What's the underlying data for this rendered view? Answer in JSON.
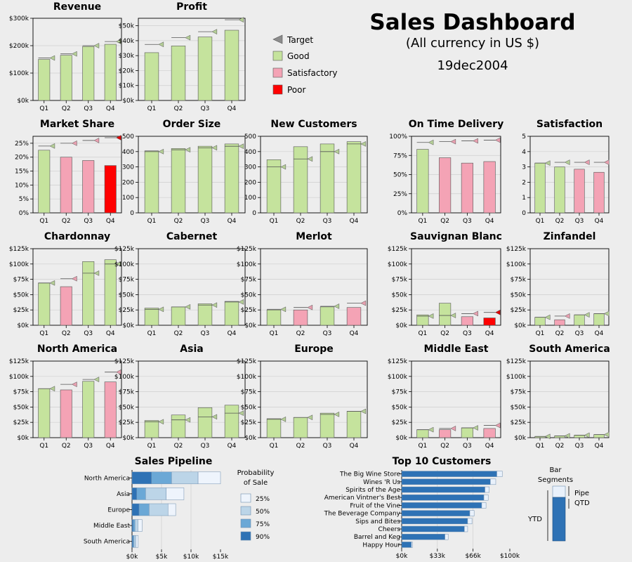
{
  "header": {
    "title": "Sales Dashboard",
    "subtitle": "(All currency in US $)",
    "date": "19dec2004"
  },
  "legend": {
    "items": [
      {
        "label": "Target",
        "color": "#8c8c8c",
        "icon": "triangle-icon"
      },
      {
        "label": "Good",
        "color": "#c5e39d",
        "icon": "square-icon"
      },
      {
        "label": "Satisfactory",
        "color": "#f4a3b5",
        "icon": "square-icon"
      },
      {
        "label": "Poor",
        "color": "#ff0000",
        "icon": "square-icon"
      }
    ]
  },
  "colors": {
    "good": "#c5e39d",
    "satisfactory": "#f4a3b5",
    "poor": "#ff0000",
    "target": "#8c8c8c",
    "pipe": "#e9f1fb",
    "qtd": "#2e72b5"
  },
  "chart_data": [
    {
      "type": "bar",
      "title": "Revenue",
      "categories": [
        "Q1",
        "Q2",
        "Q3",
        "Q4"
      ],
      "values": [
        150000,
        165000,
        197000,
        205000
      ],
      "targets": [
        155000,
        170000,
        200000,
        215000
      ],
      "status": [
        "good",
        "good",
        "good",
        "good"
      ],
      "ylim": [
        0,
        300000
      ],
      "yticks": [
        0,
        100000,
        200000,
        300000
      ],
      "ytick_labels": [
        "$0k",
        "$100k",
        "$200k",
        "$300k"
      ]
    },
    {
      "type": "bar",
      "title": "Profit",
      "categories": [
        "Q1",
        "Q2",
        "Q3",
        "Q4"
      ],
      "values": [
        32000,
        36500,
        42500,
        47000
      ],
      "targets": [
        37500,
        42000,
        46000,
        54000
      ],
      "status": [
        "good",
        "good",
        "good",
        "good"
      ],
      "ylim": [
        0,
        55000
      ],
      "yticks": [
        0,
        10000,
        20000,
        30000,
        40000,
        50000
      ],
      "ytick_labels": [
        "$0k",
        "$10k",
        "$20k",
        "$30k",
        "$40k",
        "$50k"
      ]
    },
    {
      "type": "bar",
      "title": "Market Share",
      "categories": [
        "Q1",
        "Q2",
        "Q3",
        "Q4"
      ],
      "values": [
        22.5,
        20,
        18.8,
        17
      ],
      "targets": [
        24,
        25,
        26,
        27
      ],
      "status": [
        "good",
        "satisfactory",
        "satisfactory",
        "poor"
      ],
      "ylim": [
        0,
        27.5
      ],
      "yticks": [
        0,
        5,
        10,
        15,
        20,
        25
      ],
      "ytick_labels": [
        "0%",
        "5%",
        "10%",
        "15%",
        "20%",
        "25%"
      ]
    },
    {
      "type": "bar",
      "title": "Order Size",
      "categories": [
        "Q1",
        "Q2",
        "Q3",
        "Q4"
      ],
      "values": [
        405,
        420,
        435,
        450
      ],
      "targets": [
        400,
        412,
        425,
        435
      ],
      "status": [
        "good",
        "good",
        "good",
        "good"
      ],
      "ylim": [
        0,
        500
      ],
      "yticks": [
        0,
        100,
        200,
        300,
        400,
        500
      ],
      "ytick_labels": [
        "0",
        "100",
        "200",
        "300",
        "400",
        "500"
      ]
    },
    {
      "type": "bar",
      "title": "New Customers",
      "categories": [
        "Q1",
        "Q2",
        "Q3",
        "Q4"
      ],
      "values": [
        347,
        432,
        450,
        465
      ],
      "targets": [
        300,
        352,
        400,
        450
      ],
      "status": [
        "good",
        "good",
        "good",
        "good"
      ],
      "ylim": [
        0,
        500
      ],
      "yticks": [
        0,
        100,
        200,
        300,
        400,
        500
      ],
      "ytick_labels": [
        "0",
        "100",
        "200",
        "300",
        "400",
        "500"
      ]
    },
    {
      "type": "bar",
      "title": "On Time Delivery",
      "categories": [
        "Q1",
        "Q2",
        "Q3",
        "Q4"
      ],
      "values": [
        83,
        72,
        65,
        67
      ],
      "targets": [
        92,
        93,
        94,
        95
      ],
      "status": [
        "good",
        "satisfactory",
        "satisfactory",
        "satisfactory"
      ],
      "ylim": [
        0,
        100
      ],
      "yticks": [
        0,
        25,
        50,
        75,
        100
      ],
      "ytick_labels": [
        "0%",
        "25%",
        "50%",
        "75%",
        "100%"
      ]
    },
    {
      "type": "bar",
      "title": "Satisfaction",
      "categories": [
        "Q1",
        "Q2",
        "Q3",
        "Q4"
      ],
      "values": [
        3.25,
        3,
        2.85,
        2.65
      ],
      "targets": [
        3.25,
        3.3,
        3.3,
        3.3
      ],
      "status": [
        "good",
        "good",
        "satisfactory",
        "satisfactory"
      ],
      "ylim": [
        0,
        5
      ],
      "yticks": [
        0,
        1,
        2,
        3,
        4,
        5
      ],
      "ytick_labels": [
        "0",
        "1",
        "2",
        "3",
        "4",
        "5"
      ]
    },
    {
      "type": "bar",
      "title": "Chardonnay",
      "categories": [
        "Q1",
        "Q2",
        "Q3",
        "Q4"
      ],
      "values": [
        69000,
        63000,
        104000,
        107000
      ],
      "targets": [
        69000,
        76000,
        85000,
        100000
      ],
      "status": [
        "good",
        "satisfactory",
        "good",
        "good"
      ],
      "ylim": [
        0,
        125000
      ],
      "yticks": [
        0,
        25000,
        50000,
        75000,
        100000,
        125000
      ],
      "ytick_labels": [
        "$0k",
        "$25k",
        "$50k",
        "$75k",
        "$100k",
        "$125k"
      ]
    },
    {
      "type": "bar",
      "title": "Cabernet",
      "categories": [
        "Q1",
        "Q2",
        "Q3",
        "Q4"
      ],
      "values": [
        28000,
        30000,
        35000,
        39000
      ],
      "targets": [
        26000,
        30000,
        33000,
        38000
      ],
      "status": [
        "good",
        "good",
        "good",
        "good"
      ],
      "ylim": [
        0,
        125000
      ],
      "yticks": [
        0,
        25000,
        50000,
        75000,
        100000,
        125000
      ],
      "ytick_labels": [
        "$0k",
        "$25k",
        "$50k",
        "$75k",
        "$100k",
        "$125k"
      ]
    },
    {
      "type": "bar",
      "title": "Merlot",
      "categories": [
        "Q1",
        "Q2",
        "Q3",
        "Q4"
      ],
      "values": [
        25000,
        25000,
        30000,
        29000
      ],
      "targets": [
        26000,
        29000,
        31000,
        36000
      ],
      "status": [
        "good",
        "satisfactory",
        "good",
        "satisfactory"
      ],
      "ylim": [
        0,
        125000
      ],
      "yticks": [
        0,
        25000,
        50000,
        75000,
        100000,
        125000
      ],
      "ytick_labels": [
        "$0k",
        "$25k",
        "$50k",
        "$75k",
        "$100k",
        "$125k"
      ]
    },
    {
      "type": "bar",
      "title": "Sauvignan Blanc",
      "categories": [
        "Q1",
        "Q2",
        "Q3",
        "Q4"
      ],
      "values": [
        17000,
        36000,
        14000,
        12000
      ],
      "targets": [
        15000,
        16000,
        19000,
        21000
      ],
      "status": [
        "good",
        "good",
        "satisfactory",
        "poor"
      ],
      "ylim": [
        0,
        125000
      ],
      "yticks": [
        0,
        25000,
        50000,
        75000,
        100000,
        125000
      ],
      "ytick_labels": [
        "$0k",
        "$25k",
        "$50k",
        "$75k",
        "$100k",
        "$125k"
      ]
    },
    {
      "type": "bar",
      "title": "Zinfandel",
      "categories": [
        "Q1",
        "Q2",
        "Q3",
        "Q4"
      ],
      "values": [
        13000,
        9000,
        17000,
        19000
      ],
      "targets": [
        13000,
        15000,
        17000,
        19000
      ],
      "status": [
        "good",
        "satisfactory",
        "good",
        "good"
      ],
      "ylim": [
        0,
        125000
      ],
      "yticks": [
        0,
        25000,
        50000,
        75000,
        100000,
        125000
      ],
      "ytick_labels": [
        "$0k",
        "$25k",
        "$50k",
        "$75k",
        "$100k",
        "$125k"
      ]
    },
    {
      "type": "bar",
      "title": "North America",
      "categories": [
        "Q1",
        "Q2",
        "Q3",
        "Q4"
      ],
      "values": [
        80000,
        78000,
        92000,
        91000
      ],
      "targets": [
        80000,
        87000,
        95000,
        107000
      ],
      "status": [
        "good",
        "satisfactory",
        "good",
        "satisfactory"
      ],
      "ylim": [
        0,
        125000
      ],
      "yticks": [
        0,
        25000,
        50000,
        75000,
        100000,
        125000
      ],
      "ytick_labels": [
        "$0k",
        "$25k",
        "$50k",
        "$75k",
        "$100k",
        "$125k"
      ]
    },
    {
      "type": "bar",
      "title": "Asia",
      "categories": [
        "Q1",
        "Q2",
        "Q3",
        "Q4"
      ],
      "values": [
        28000,
        37000,
        49000,
        53000
      ],
      "targets": [
        26000,
        29000,
        34000,
        40000
      ],
      "status": [
        "good",
        "good",
        "good",
        "good"
      ],
      "ylim": [
        0,
        125000
      ],
      "yticks": [
        0,
        25000,
        50000,
        75000,
        100000,
        125000
      ],
      "ytick_labels": [
        "$0k",
        "$25k",
        "$50k",
        "$75k",
        "$100k",
        "$125k"
      ]
    },
    {
      "type": "bar",
      "title": "Europe",
      "categories": [
        "Q1",
        "Q2",
        "Q3",
        "Q4"
      ],
      "values": [
        31000,
        33000,
        40000,
        43000
      ],
      "targets": [
        30000,
        33000,
        38000,
        43000
      ],
      "status": [
        "good",
        "good",
        "good",
        "good"
      ],
      "ylim": [
        0,
        125000
      ],
      "yticks": [
        0,
        25000,
        50000,
        75000,
        100000,
        125000
      ],
      "ytick_labels": [
        "$0k",
        "$25k",
        "$50k",
        "$75k",
        "$100k",
        "$125k"
      ]
    },
    {
      "type": "bar",
      "title": "Middle East",
      "categories": [
        "Q1",
        "Q2",
        "Q3",
        "Q4"
      ],
      "values": [
        13000,
        13000,
        16000,
        15000
      ],
      "targets": [
        13000,
        15000,
        16000,
        20000
      ],
      "status": [
        "good",
        "satisfactory",
        "good",
        "satisfactory"
      ],
      "ylim": [
        0,
        125000
      ],
      "yticks": [
        0,
        25000,
        50000,
        75000,
        100000,
        125000
      ],
      "ytick_labels": [
        "$0k",
        "$25k",
        "$50k",
        "$75k",
        "$100k",
        "$125k"
      ]
    },
    {
      "type": "bar",
      "title": "South America",
      "categories": [
        "Q1",
        "Q2",
        "Q3",
        "Q4"
      ],
      "values": [
        2000,
        3000,
        4000,
        5000
      ],
      "targets": [
        2000,
        3000,
        4000,
        5000
      ],
      "status": [
        "good",
        "good",
        "good",
        "good"
      ],
      "ylim": [
        0,
        125000
      ],
      "yticks": [
        0,
        25000,
        50000,
        75000,
        100000,
        125000
      ],
      "ytick_labels": [
        "$0k",
        "$25k",
        "$50k",
        "$75k",
        "$100k",
        "$125k"
      ]
    },
    {
      "type": "bar",
      "orientation": "horizontal-stacked",
      "title": "Sales Pipeline",
      "categories": [
        "North America",
        "Asia",
        "Europe",
        "Middle East",
        "South America"
      ],
      "series": [
        {
          "name": "90%",
          "values": [
            3300,
            800,
            1200,
            200,
            150
          ]
        },
        {
          "name": "75%",
          "values": [
            3400,
            1500,
            1700,
            300,
            200
          ]
        },
        {
          "name": "50%",
          "values": [
            4500,
            3500,
            3200,
            500,
            300
          ]
        },
        {
          "name": "25%",
          "values": [
            3800,
            3000,
            1300,
            700,
            400
          ]
        }
      ],
      "xlim": [
        0,
        15000
      ],
      "xticks": [
        0,
        5000,
        10000,
        15000
      ],
      "xtick_labels": [
        "$0k",
        "$5k",
        "$10k",
        "$15k"
      ],
      "legend_title": "Probability of Sale",
      "legend_title_lines": [
        "Probability",
        "of Sale"
      ],
      "legend_order": [
        "25%",
        "50%",
        "75%",
        "90%"
      ],
      "legend": "right"
    },
    {
      "type": "bar",
      "orientation": "horizontal-stacked",
      "title": "Top 10 Customers",
      "categories": [
        "The Big Wine Store",
        "Wines 'R Us",
        "Spirits of the Age",
        "American Vintner's Best",
        "Fruit of the Vine",
        "The Beverage Company",
        "Sips and Bites",
        "Cheers",
        "Barrel and Keg",
        "Happy Hour"
      ],
      "series": [
        {
          "name": "QTD",
          "values": [
            88000,
            82000,
            77000,
            76000,
            74000,
            63000,
            61000,
            58000,
            40000,
            9000
          ]
        },
        {
          "name": "Pipe",
          "values": [
            5000,
            5000,
            4000,
            4000,
            4000,
            4000,
            4000,
            3000,
            3000,
            1000
          ]
        }
      ],
      "xlim": [
        0,
        100000
      ],
      "xticks": [
        0,
        33000,
        66000,
        100000
      ],
      "xtick_labels": [
        "$0k",
        "$33k",
        "$66k",
        "$100k"
      ]
    }
  ],
  "segments_legend": {
    "title": "Bar Segments",
    "title_lines": [
      "Bar",
      "Segments"
    ],
    "ytd_label": "YTD",
    "pipe_label": "Pipe",
    "qtd_label": "QTD"
  }
}
